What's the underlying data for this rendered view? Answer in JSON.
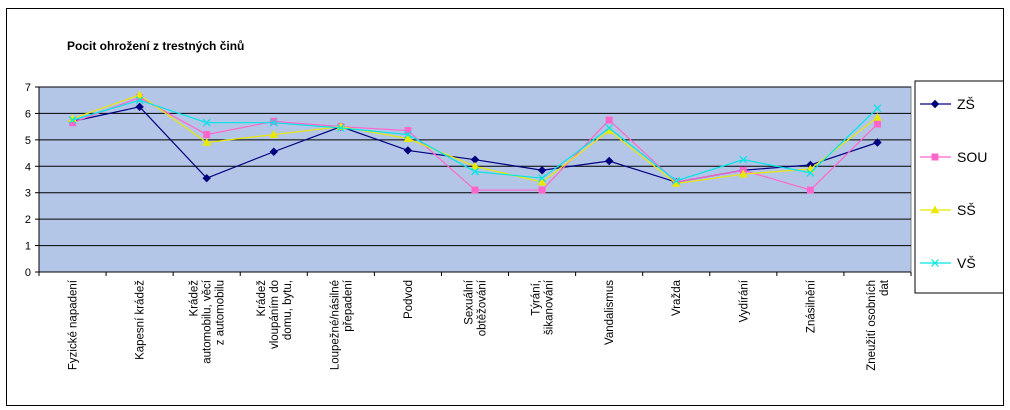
{
  "chart_data": {
    "type": "line",
    "title": "Pocit ohrožení z trestných činů",
    "xlabel": "",
    "ylabel": "",
    "ylim": [
      0,
      7
    ],
    "yticks": [
      0,
      1,
      2,
      3,
      4,
      5,
      6,
      7
    ],
    "grid": true,
    "legend_position": "right",
    "plot_background": "#b4c6e7",
    "categories": [
      "Fyzické napadení",
      "Kapesní krádež",
      "Krádež automobilu, věcí z automobilu",
      "Krádež vloupáním do domu, bytu,",
      "Loupežné/násilné přepadení",
      "Podvod",
      "Sexuální obtěžování",
      "Týrání, šikanování",
      "Vandalismus",
      "Vražda",
      "Vydírání",
      "Znásilnění",
      "Zneužití osobních dat"
    ],
    "category_lines": [
      [
        "Fyzické napadení"
      ],
      [
        "Kapesní krádež"
      ],
      [
        "Krádež",
        "automobilu, věcí",
        "z automobilu"
      ],
      [
        "Krádež",
        "vloupáním do",
        "domu, bytu,"
      ],
      [
        "Loupežné/násilné",
        "přepadení"
      ],
      [
        "Podvod"
      ],
      [
        "Sexuální",
        "obtěžování"
      ],
      [
        "Týrání,",
        "šikanování"
      ],
      [
        "Vandalismus"
      ],
      [
        "Vražda"
      ],
      [
        "Vydírání"
      ],
      [
        "Znásilnění"
      ],
      [
        "Zneužití osobních",
        "dat"
      ]
    ],
    "series": [
      {
        "name": "ZŠ",
        "color": "#00007f",
        "marker": "diamond",
        "values": [
          5.7,
          6.25,
          3.55,
          4.55,
          5.5,
          4.6,
          4.25,
          3.85,
          4.2,
          3.4,
          3.85,
          4.05,
          4.9
        ]
      },
      {
        "name": "SOU",
        "color": "#ff66cc",
        "marker": "square",
        "values": [
          5.65,
          6.6,
          5.2,
          5.7,
          5.5,
          5.35,
          3.1,
          3.1,
          5.75,
          3.4,
          3.85,
          3.1,
          5.6
        ]
      },
      {
        "name": "SŠ",
        "color": "#e8e800",
        "marker": "triangle",
        "values": [
          5.8,
          6.7,
          4.9,
          5.2,
          5.5,
          5.05,
          4.0,
          3.4,
          5.35,
          3.35,
          3.7,
          3.9,
          5.85
        ]
      },
      {
        "name": "VŠ",
        "color": "#00e5e5",
        "marker": "x",
        "values": [
          5.75,
          6.5,
          5.65,
          5.65,
          5.45,
          5.2,
          3.8,
          3.55,
          5.45,
          3.45,
          4.25,
          3.75,
          6.2
        ]
      }
    ]
  }
}
